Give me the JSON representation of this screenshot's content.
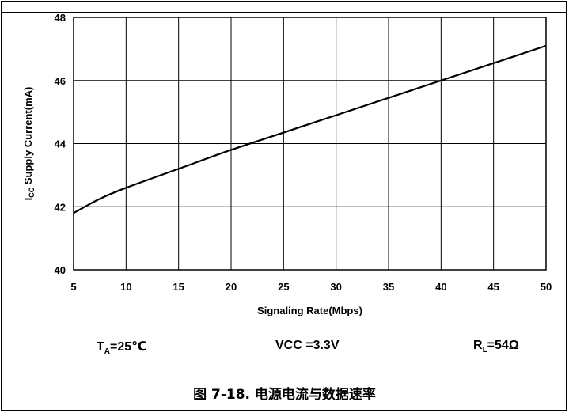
{
  "chart_data": {
    "type": "line",
    "title": "",
    "xlabel": "Signaling Rate(Mbps)",
    "ylabel_main": "I",
    "ylabel_sub": "CC",
    "ylabel_rest": " Supply Current(mA)",
    "xlim": [
      5,
      50
    ],
    "ylim": [
      40,
      48
    ],
    "xticks": [
      5,
      10,
      15,
      20,
      25,
      30,
      35,
      40,
      45,
      50
    ],
    "yticks": [
      40,
      42,
      44,
      46,
      48
    ],
    "grid": true,
    "series": [
      {
        "x": [
          5,
          7.5,
          10,
          15,
          20,
          25,
          30,
          35,
          40,
          45,
          50
        ],
        "y": [
          41.8,
          42.25,
          42.6,
          43.2,
          43.8,
          44.35,
          44.9,
          45.45,
          46.0,
          46.55,
          47.1
        ]
      }
    ]
  },
  "conditions": {
    "ta_main": "T",
    "ta_sub": "A",
    "ta_rest": "=25℃",
    "vcc": "VCC =3.3V",
    "rl_main": "R",
    "rl_sub": "L",
    "rl_rest": "=54Ω"
  },
  "caption": "图 7-18. 电源电流与数据速率"
}
